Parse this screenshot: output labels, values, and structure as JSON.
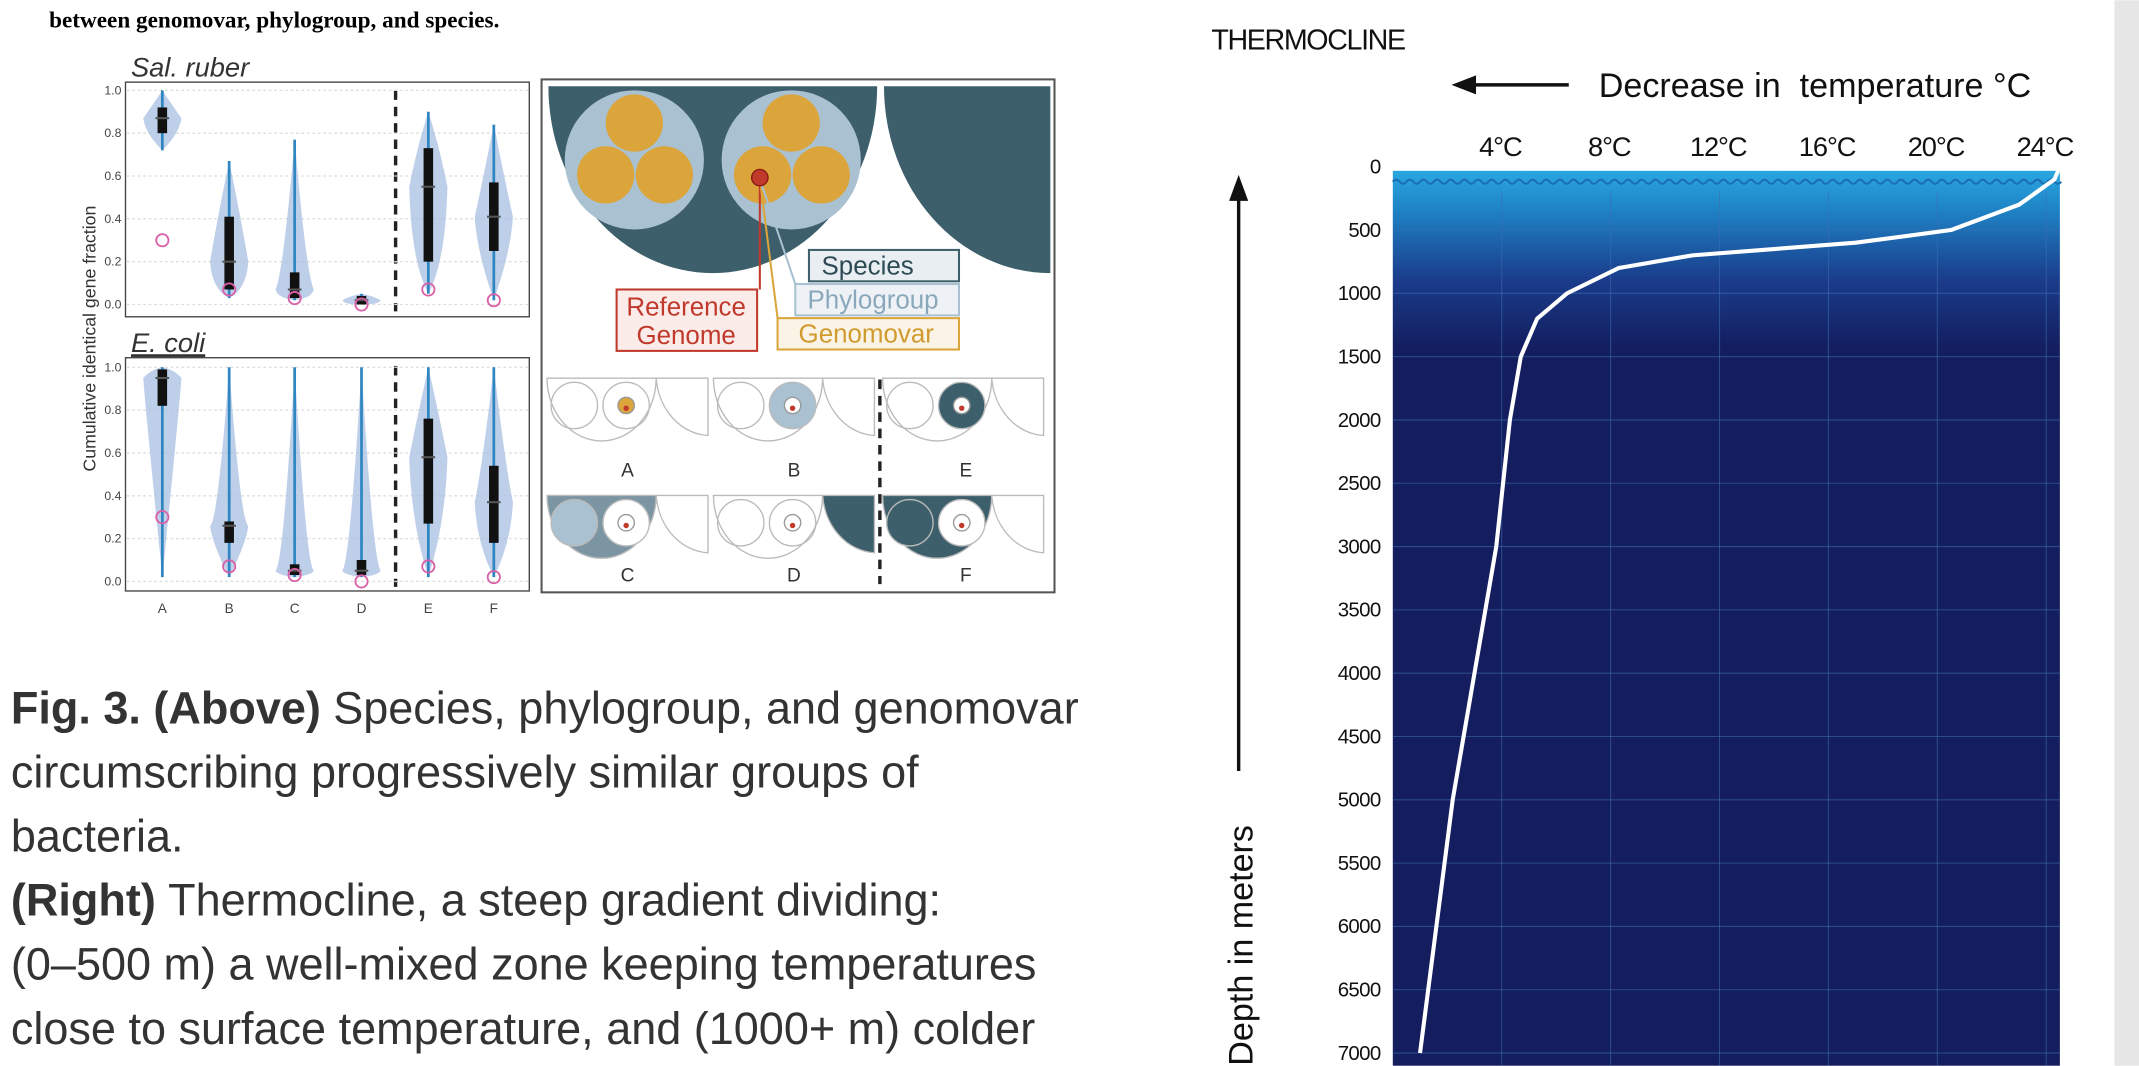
{
  "figure_header": "between genomovar, phylogroup, and species.",
  "violin_plots": {
    "y_label": "Cumulative identical gene fraction",
    "categories": [
      "A",
      "B",
      "C",
      "D",
      "E",
      "F"
    ],
    "ylim": [
      0,
      1
    ],
    "yticks": [
      {
        "value": 0,
        "label": "0.0"
      },
      0.2,
      0.4,
      0.6,
      0.8,
      {
        "value": 1,
        "label": "1.0"
      }
    ],
    "panels": [
      {
        "title": "Sal. ruber",
        "min": [
          0.72,
          0.03,
          0.02,
          0.0,
          0.05,
          0.02
        ],
        "q1": [
          0.8,
          0.07,
          0.03,
          0.0,
          0.2,
          0.25
        ],
        "median": [
          0.87,
          0.2,
          0.07,
          0.02,
          0.55,
          0.41
        ],
        "q3": [
          0.92,
          0.41,
          0.15,
          0.04,
          0.73,
          0.57
        ],
        "max": [
          1.0,
          0.67,
          0.77,
          0.05,
          0.9,
          0.84
        ],
        "reference": [
          0.3,
          0.07,
          0.03,
          0.0,
          0.07,
          0.02
        ]
      },
      {
        "title": "E. coli",
        "min": [
          0.02,
          0.02,
          0.02,
          0.02,
          0.02,
          0.02
        ],
        "q1": [
          0.82,
          0.18,
          0.03,
          0.03,
          0.27,
          0.18
        ],
        "median": [
          0.95,
          0.26,
          0.05,
          0.05,
          0.58,
          0.37
        ],
        "q3": [
          0.99,
          0.28,
          0.08,
          0.1,
          0.76,
          0.54
        ],
        "max": [
          1.0,
          1.0,
          1.0,
          1.0,
          1.0,
          1.0
        ],
        "reference": [
          0.3,
          0.07,
          0.03,
          0.0,
          0.07,
          0.02
        ]
      }
    ]
  },
  "diagram": {
    "species": "Species",
    "phylogroup": "Phylogroup",
    "genomovar": "Genomovar",
    "reference_genome": [
      "Reference",
      "Genome"
    ],
    "panels": [
      "A",
      "B",
      "E",
      "C",
      "D",
      "F"
    ]
  },
  "caption": [
    {
      "lead": "Fig. 3. (Above)",
      "lines": [
        "Species, phylogroup, and genomovar",
        "circumscribing progressively similar groups of",
        "bacteria."
      ]
    },
    {
      "lead": "(Right)",
      "lines": [
        "Thermocline, a steep gradient dividing:",
        "(0–500 m) a well-mixed zone keeping temperatures",
        "close to surface temperature, and (1000+ m) colder"
      ]
    }
  ],
  "chart_data": {
    "type": "line",
    "title": "THERMOCLINE",
    "x_label": "Decrease in  temperature °C",
    "y_label": "Depth in meters",
    "x": [
      24.5,
      24.3,
      23,
      20.5,
      17,
      14,
      11,
      8.3,
      6.4,
      5.3,
      4.7,
      4.3,
      3.8,
      3,
      2.2,
      1.6,
      1
    ],
    "series": [
      {
        "color": "#ffffff",
        "values": [
          0,
          100,
          300,
          500,
          600,
          650,
          700,
          800,
          1000,
          1200,
          1500,
          2000,
          3000,
          4000,
          5000,
          6000,
          7000
        ]
      }
    ],
    "xlim": [
      0,
      24.5
    ],
    "xticks": [
      {
        "value": 4,
        "label": "4°C"
      },
      {
        "value": 8,
        "label": "8°C"
      },
      {
        "value": 12,
        "label": "12°C"
      },
      {
        "value": 16,
        "label": "16°C"
      },
      {
        "value": 20,
        "label": "20°C"
      },
      {
        "value": 24,
        "label": "24°C"
      }
    ],
    "ylim": [
      0,
      7100
    ],
    "yticks": [
      0,
      500,
      1000,
      1500,
      2000,
      2500,
      3000,
      3500,
      4000,
      4500,
      5000,
      5500,
      6000,
      6500,
      7000
    ],
    "grid": true
  }
}
